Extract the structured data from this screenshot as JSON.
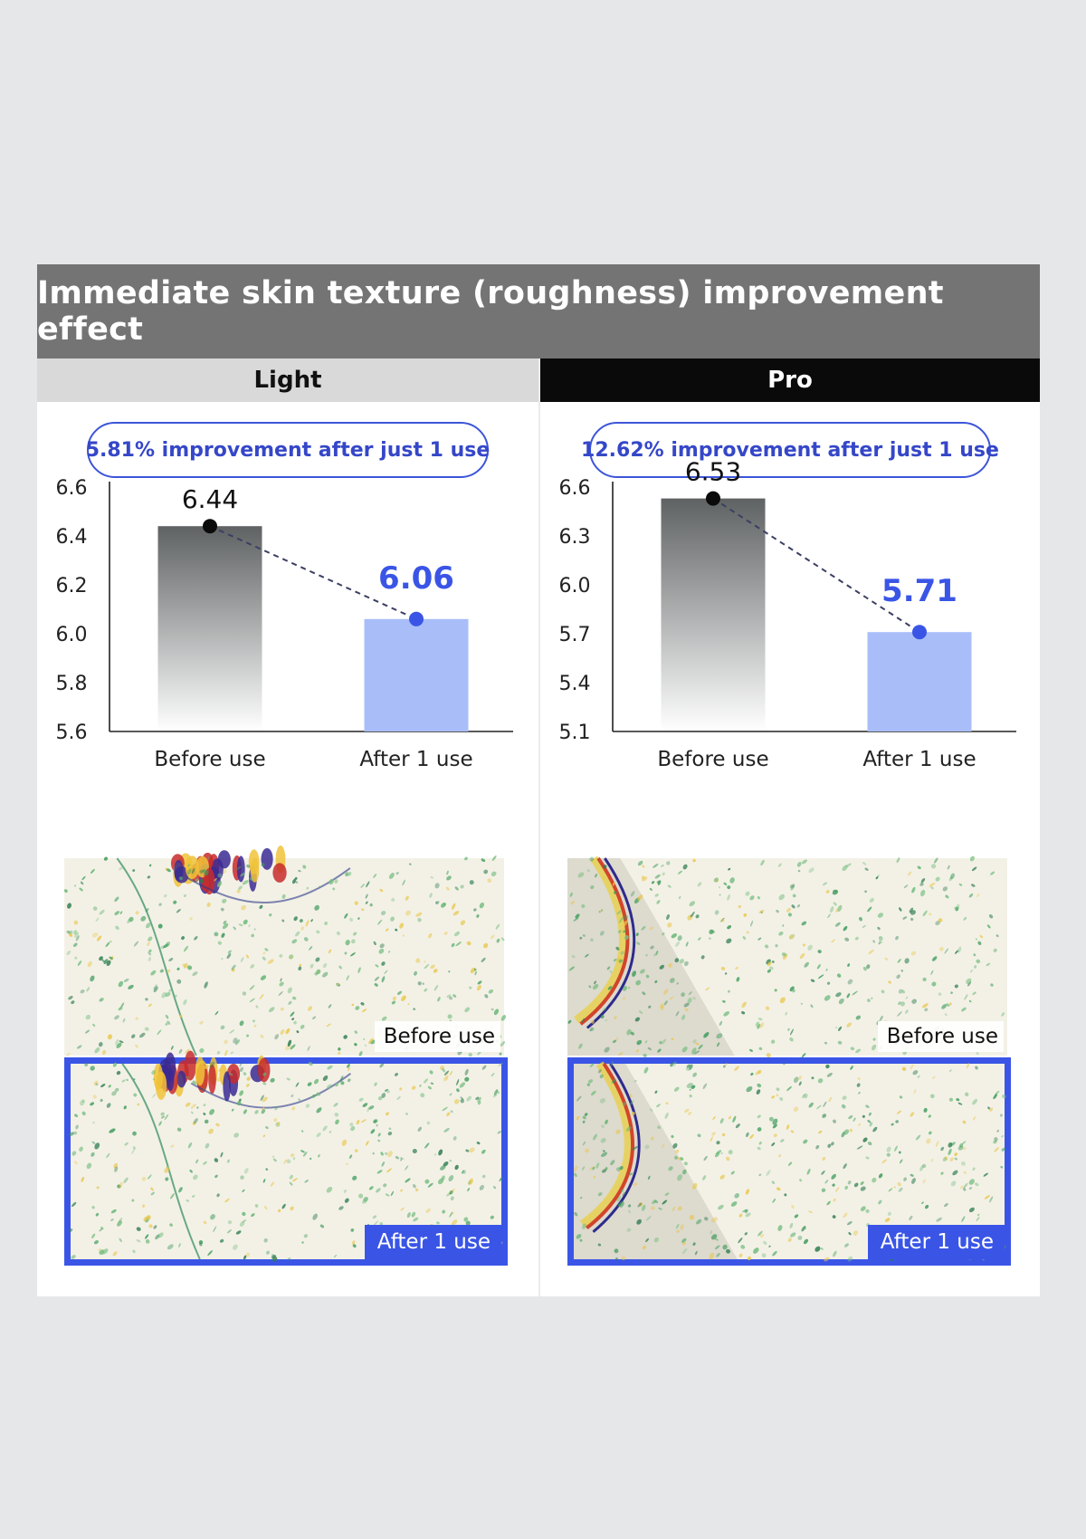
{
  "title": "Immediate skin texture (roughness) improvement effect",
  "colors": {
    "title_bg": "#747474",
    "before_bar_top": "#5f6263",
    "after_bar": "#a9bef9",
    "accent_blue": "#3a55e6",
    "pro_header_bg": "#0a0a0a",
    "light_header_bg": "#d9d9d9"
  },
  "panels": [
    {
      "header": "Light",
      "improvement_text": "5.81% improvement after just 1 use",
      "photo_before_label": "Before use",
      "photo_after_label": "After 1 use"
    },
    {
      "header": "Pro",
      "improvement_text": "12.62% improvement after just 1 use",
      "photo_before_label": "Before use",
      "photo_after_label": "After 1 use"
    }
  ],
  "chart_data": [
    {
      "type": "bar",
      "categories": [
        "Before use",
        "After 1 use"
      ],
      "values": [
        6.44,
        6.06
      ],
      "value_labels": [
        "6.44",
        "6.06"
      ],
      "yticks": [
        "6.6",
        "6.4",
        "6.2",
        "6.0",
        "5.8",
        "5.6"
      ],
      "ylim": [
        5.6,
        6.6
      ],
      "grid": false,
      "connector": "dashed"
    },
    {
      "type": "bar",
      "categories": [
        "Before use",
        "After 1 use"
      ],
      "values": [
        6.53,
        5.71
      ],
      "value_labels": [
        "6.53",
        "5.71"
      ],
      "yticks": [
        "6.6",
        "6.3",
        "6.0",
        "5.7",
        "5.4",
        "5.1"
      ],
      "ylim": [
        5.1,
        6.6
      ],
      "grid": false,
      "connector": "dashed"
    }
  ]
}
